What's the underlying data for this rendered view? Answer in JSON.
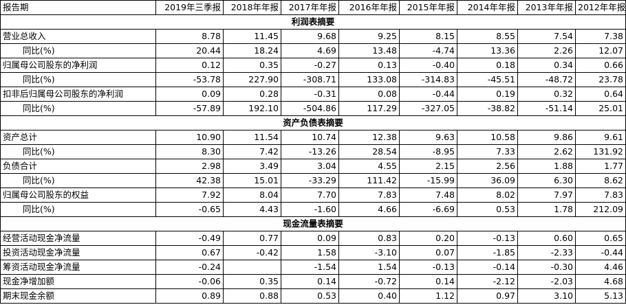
{
  "header": {
    "label": "报告期",
    "periods": [
      "2019年三季报",
      "2018年年报",
      "2017年年报",
      "2016年年报",
      "2015年年报",
      "2014年年报",
      "2013年年报",
      "2012年年报"
    ]
  },
  "sections": [
    {
      "title": "利润表摘要",
      "rows": [
        {
          "label": "营业总收入",
          "indent": false,
          "values": [
            "8.78",
            "11.45",
            "9.68",
            "9.25",
            "8.15",
            "8.55",
            "7.54",
            "7.38"
          ]
        },
        {
          "label": "同比(%)",
          "indent": true,
          "values": [
            "20.44",
            "18.24",
            "4.69",
            "13.48",
            "-4.74",
            "13.36",
            "2.26",
            "12.07"
          ]
        },
        {
          "label": "归属母公司股东的净利润",
          "indent": false,
          "values": [
            "0.12",
            "0.35",
            "-0.27",
            "0.13",
            "-0.40",
            "0.18",
            "0.34",
            "0.66"
          ]
        },
        {
          "label": "同比(%)",
          "indent": true,
          "values": [
            "-53.78",
            "227.90",
            "-308.71",
            "133.08",
            "-314.83",
            "-45.51",
            "-48.72",
            "23.78"
          ]
        },
        {
          "label": "扣非后归属母公司股东的净利润",
          "indent": false,
          "values": [
            "0.09",
            "0.28",
            "-0.31",
            "0.08",
            "-0.44",
            "0.19",
            "0.32",
            "0.64"
          ]
        },
        {
          "label": "同比(%)",
          "indent": true,
          "values": [
            "-57.89",
            "192.10",
            "-504.86",
            "117.29",
            "-327.05",
            "-38.82",
            "-51.14",
            "25.01"
          ]
        }
      ]
    },
    {
      "title": "资产负债表摘要",
      "rows": [
        {
          "label": "资产总计",
          "indent": false,
          "values": [
            "10.90",
            "11.54",
            "10.74",
            "12.38",
            "9.63",
            "10.58",
            "9.86",
            "9.61"
          ]
        },
        {
          "label": "同比(%)",
          "indent": true,
          "values": [
            "8.30",
            "7.42",
            "-13.26",
            "28.54",
            "-8.95",
            "7.33",
            "2.62",
            "131.92"
          ]
        },
        {
          "label": "负债合计",
          "indent": false,
          "values": [
            "2.98",
            "3.49",
            "3.04",
            "4.55",
            "2.15",
            "2.56",
            "1.88",
            "1.77"
          ]
        },
        {
          "label": "同比(%)",
          "indent": true,
          "values": [
            "42.38",
            "15.01",
            "-33.29",
            "111.42",
            "-15.99",
            "36.09",
            "6.30",
            "8.62"
          ]
        },
        {
          "label": "归属母公司股东的权益",
          "indent": false,
          "values": [
            "7.92",
            "8.04",
            "7.70",
            "7.83",
            "7.48",
            "8.02",
            "7.97",
            "7.83"
          ]
        },
        {
          "label": "同比(%)",
          "indent": true,
          "values": [
            "-0.65",
            "4.43",
            "-1.60",
            "4.66",
            "-6.69",
            "0.53",
            "1.78",
            "212.09"
          ]
        }
      ]
    },
    {
      "title": "现金流量表摘要",
      "rows": [
        {
          "label": "经营活动现金净流量",
          "indent": false,
          "values": [
            "-0.49",
            "0.77",
            "0.09",
            "0.83",
            "0.20",
            "-0.13",
            "0.60",
            "0.65"
          ]
        },
        {
          "label": "投资活动现金净流量",
          "indent": false,
          "values": [
            "0.67",
            "-0.42",
            "1.58",
            "-3.10",
            "0.07",
            "-1.85",
            "-2.33",
            "-0.44"
          ]
        },
        {
          "label": "筹资活动现金净流量",
          "indent": false,
          "values": [
            "-0.24",
            "",
            "-1.54",
            "1.54",
            "-0.13",
            "-0.14",
            "-0.30",
            "4.46"
          ]
        },
        {
          "label": "现金净增加额",
          "indent": false,
          "values": [
            "-0.06",
            "0.35",
            "0.14",
            "-0.72",
            "0.14",
            "-2.12",
            "-2.03",
            "4.68"
          ]
        },
        {
          "label": "期末现金余额",
          "indent": false,
          "values": [
            "0.89",
            "0.88",
            "0.53",
            "0.40",
            "1.12",
            "0.97",
            "3.10",
            "5.13"
          ]
        }
      ]
    }
  ]
}
